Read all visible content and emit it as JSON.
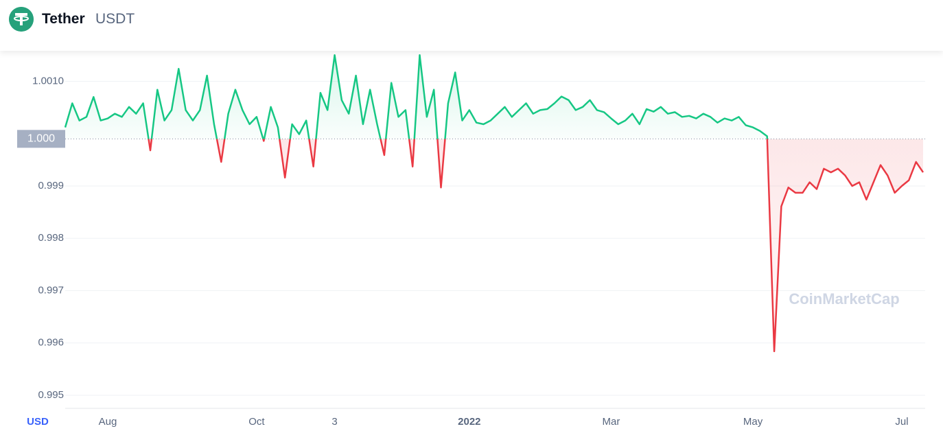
{
  "header": {
    "name": "Tether",
    "symbol": "USDT"
  },
  "chart_data": {
    "type": "line",
    "currency": "USD",
    "watermark": "CoinMarketCap",
    "baseline": {
      "value": 0.9999,
      "label": "1.000"
    },
    "above_color": "#16c784",
    "below_color": "#ea3943",
    "ylim": [
      0.99475,
      1.00157
    ],
    "yticks": [
      0.995,
      0.996,
      0.997,
      0.998,
      0.999,
      {
        "value": 1.001,
        "label": "1.0010"
      }
    ],
    "grid": true,
    "categories": [
      null,
      null,
      null,
      null,
      null,
      null,
      "Aug",
      null,
      null,
      null,
      null,
      null,
      null,
      null,
      null,
      null,
      null,
      null,
      null,
      null,
      null,
      null,
      null,
      null,
      null,
      null,
      null,
      "Oct",
      null,
      null,
      null,
      null,
      null,
      null,
      null,
      null,
      null,
      null,
      "3",
      null,
      null,
      null,
      null,
      null,
      null,
      null,
      null,
      null,
      null,
      null,
      null,
      null,
      null,
      null,
      null,
      null,
      null,
      "2022",
      null,
      null,
      null,
      null,
      null,
      null,
      null,
      null,
      null,
      null,
      null,
      null,
      null,
      null,
      null,
      null,
      null,
      null,
      null,
      "Mar",
      null,
      null,
      null,
      null,
      null,
      null,
      null,
      null,
      null,
      null,
      null,
      null,
      null,
      null,
      null,
      null,
      null,
      null,
      null,
      "May",
      null,
      null,
      null,
      null,
      null,
      null,
      null,
      null,
      null,
      null,
      null,
      null,
      null,
      null,
      null,
      null,
      null,
      null,
      null,
      null,
      "Jul",
      null,
      null,
      null
    ],
    "values": [
      1.00012,
      1.00058,
      1.00025,
      1.00032,
      1.0007,
      1.00025,
      1.00029,
      1.00038,
      1.00032,
      1.00051,
      1.00038,
      1.00058,
      0.99968,
      1.00084,
      1.00025,
      1.00045,
      1.00124,
      1.00045,
      1.00025,
      1.00045,
      1.00111,
      1.00018,
      0.99946,
      1.00038,
      1.00084,
      1.00045,
      1.00018,
      1.00032,
      0.99986,
      1.00051,
      1.00012,
      0.99916,
      1.00018,
      0.99999,
      1.00025,
      0.99937,
      1.00078,
      1.00045,
      1.0015,
      1.00064,
      1.00038,
      1.00111,
      1.00018,
      1.00084,
      1.00018,
      0.99959,
      1.00097,
      1.00032,
      1.00045,
      0.99937,
      1.0015,
      1.00032,
      1.00084,
      0.99897,
      1.00058,
      1.00117,
      1.00025,
      1.00045,
      1.00021,
      1.00018,
      1.00025,
      1.00038,
      1.00051,
      1.00032,
      1.00045,
      1.00058,
      1.00038,
      1.00045,
      1.00047,
      1.00058,
      1.00071,
      1.00064,
      1.00045,
      1.00051,
      1.00064,
      1.00045,
      1.00041,
      1.00029,
      1.00018,
      1.00025,
      1.00038,
      1.00018,
      1.00047,
      1.00042,
      1.00051,
      1.00038,
      1.00041,
      1.00032,
      1.00034,
      1.00029,
      1.00038,
      1.00032,
      1.00021,
      1.00029,
      1.00025,
      1.00032,
      1.00016,
      1.00012,
      1.00005,
      0.99995,
      0.99584,
      0.99861,
      0.99897,
      0.99887,
      0.99887,
      0.99907,
      0.99894,
      0.99933,
      0.99926,
      0.99933,
      0.9992,
      0.999,
      0.99907,
      0.99874,
      0.99907,
      0.9994,
      0.9992,
      0.99887,
      0.999,
      0.99911,
      0.99946,
      0.99926
    ]
  }
}
